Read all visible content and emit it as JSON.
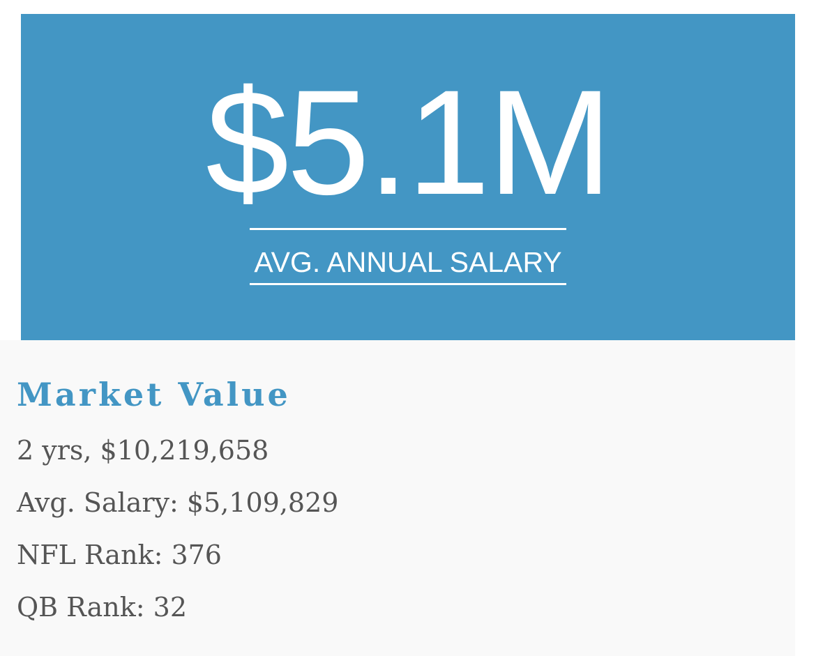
{
  "hero": {
    "value": "$5.1M",
    "label": "AVG. ANNUAL SALARY"
  },
  "market": {
    "title": "Market Value",
    "contract": "2 yrs, $10,219,658",
    "avg_salary": "Avg. Salary: $5,109,829",
    "nfl_rank": "NFL Rank: 376",
    "qb_rank": "QB Rank: 32"
  },
  "colors": {
    "accent": "#4396c4",
    "panel_bg": "#f9f9f9",
    "text": "#555555"
  }
}
